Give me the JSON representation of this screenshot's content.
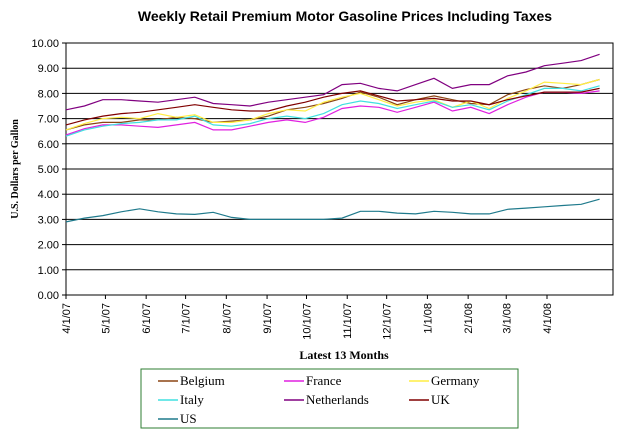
{
  "chart_data": {
    "type": "line",
    "title": "Weekly Retail Premium Motor Gasoline Prices Including Taxes",
    "xlabel": "Latest 13 Months",
    "ylabel": "U.S. Dollars per Gallon",
    "ylim": [
      0,
      10
    ],
    "yticks": [
      "0.00",
      "1.00",
      "2.00",
      "3.00",
      "4.00",
      "5.00",
      "6.00",
      "7.00",
      "8.00",
      "9.00",
      "10.00"
    ],
    "xticks": [
      "4/1/07",
      "5/1/07",
      "6/1/07",
      "7/1/07",
      "8/1/07",
      "9/1/07",
      "10/1/07",
      "11/1/07",
      "12/1/07",
      "1/1/08",
      "2/1/08",
      "3/1/08",
      "4/1/08"
    ],
    "xtick_days": [
      0,
      30,
      61,
      91,
      122,
      153,
      183,
      214,
      244,
      275,
      306,
      335,
      366
    ],
    "x_days": [
      0,
      14,
      28,
      42,
      56,
      70,
      84,
      98,
      112,
      126,
      140,
      154,
      168,
      182,
      196,
      210,
      224,
      238,
      252,
      266,
      280,
      294,
      308,
      322,
      336,
      350,
      364,
      378,
      392,
      406
    ],
    "grid": true,
    "legend": "bottom",
    "series": [
      {
        "name": "Belgium",
        "color": "#8B4513",
        "values": [
          6.55,
          6.75,
          6.85,
          6.85,
          6.95,
          6.95,
          7.05,
          7.0,
          6.85,
          6.9,
          6.95,
          7.1,
          7.35,
          7.45,
          7.6,
          7.8,
          8.05,
          7.85,
          7.55,
          7.75,
          7.9,
          7.75,
          7.6,
          7.55,
          7.95,
          8.15,
          8.3,
          8.2,
          8.35,
          8.55
        ]
      },
      {
        "name": "France",
        "color": "#E020E0",
        "values": [
          6.35,
          6.6,
          6.75,
          6.75,
          6.7,
          6.65,
          6.75,
          6.85,
          6.55,
          6.55,
          6.7,
          6.85,
          6.95,
          6.85,
          7.05,
          7.4,
          7.5,
          7.45,
          7.25,
          7.45,
          7.65,
          7.3,
          7.45,
          7.2,
          7.55,
          7.85,
          8.05,
          8.05,
          8.0,
          8.1
        ]
      },
      {
        "name": "Germany",
        "color": "#FFEE44",
        "values": [
          6.55,
          6.8,
          7.0,
          7.05,
          7.0,
          7.2,
          7.05,
          7.15,
          6.85,
          6.85,
          6.95,
          7.2,
          7.35,
          7.3,
          7.65,
          7.85,
          8.0,
          7.75,
          7.5,
          7.65,
          7.75,
          7.45,
          7.7,
          7.4,
          7.8,
          8.1,
          8.45,
          8.4,
          8.35,
          8.55
        ]
      },
      {
        "name": "Italy",
        "color": "#40E0E0",
        "values": [
          6.3,
          6.55,
          6.7,
          6.8,
          6.85,
          6.95,
          6.95,
          7.1,
          6.75,
          6.7,
          6.8,
          7.0,
          7.1,
          7.0,
          7.2,
          7.55,
          7.7,
          7.6,
          7.4,
          7.55,
          7.7,
          7.45,
          7.55,
          7.35,
          7.7,
          7.95,
          8.2,
          8.2,
          8.1,
          8.3
        ]
      },
      {
        "name": "Netherlands",
        "color": "#800080",
        "values": [
          7.35,
          7.5,
          7.75,
          7.75,
          7.7,
          7.65,
          7.75,
          7.85,
          7.6,
          7.55,
          7.5,
          7.65,
          7.75,
          7.85,
          7.95,
          8.35,
          8.4,
          8.2,
          8.1,
          8.35,
          8.6,
          8.2,
          8.35,
          8.35,
          8.7,
          8.85,
          9.1,
          9.2,
          9.3,
          9.55
        ]
      },
      {
        "name": "UK",
        "color": "#800000",
        "values": [
          6.75,
          6.95,
          7.1,
          7.2,
          7.25,
          7.35,
          7.45,
          7.55,
          7.45,
          7.35,
          7.3,
          7.3,
          7.5,
          7.65,
          7.85,
          8.0,
          8.1,
          7.9,
          7.7,
          7.75,
          7.8,
          7.7,
          7.7,
          7.55,
          7.75,
          7.9,
          8.05,
          8.05,
          8.05,
          8.2
        ]
      },
      {
        "name": "US",
        "color": "#1F7A8C",
        "values": [
          2.9,
          3.05,
          3.15,
          3.3,
          3.42,
          3.3,
          3.22,
          3.2,
          3.28,
          3.08,
          3.0,
          3.0,
          3.0,
          3.0,
          3.0,
          3.05,
          3.32,
          3.32,
          3.25,
          3.22,
          3.32,
          3.28,
          3.22,
          3.22,
          3.4,
          3.45,
          3.5,
          3.55,
          3.6,
          3.8
        ]
      }
    ]
  }
}
